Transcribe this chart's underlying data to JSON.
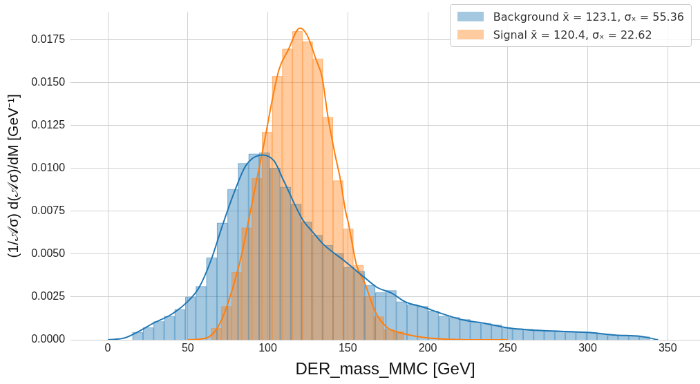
{
  "chart_data": {
    "type": "histogram",
    "xlabel": "DER_mass_MMC [GeV]",
    "ylabel": "(1/𝒜σ) d(𝒜σ)/dM [GeV⁻¹]",
    "xlim": [
      -23.3,
      370.2
    ],
    "xticks": [
      0,
      50,
      100,
      150,
      200,
      250,
      300,
      350
    ],
    "ylim": [
      0,
      0.0191
    ],
    "yticks": [
      {
        "value": 0,
        "label": "0.0000"
      },
      {
        "value": 0.0025,
        "label": "0.0025"
      },
      {
        "value": 0.005,
        "label": "0.0050"
      },
      {
        "value": 0.0075,
        "label": "0.0075"
      },
      {
        "value": 0.01,
        "label": "0.0100"
      },
      {
        "value": 0.0125,
        "label": "0.0125"
      },
      {
        "value": 0.015,
        "label": "0.0150"
      },
      {
        "value": 0.0175,
        "label": "0.0175"
      }
    ],
    "grid": true,
    "legend": "top right",
    "series": [
      {
        "name": "Background x̄ = 123.1, σₓ = 55.36",
        "color": "#a5c8e1",
        "bins": [
          15.4,
          22.0,
          28.6,
          35.2,
          41.8,
          48.4,
          55.0,
          61.6,
          68.2,
          74.8,
          81.4,
          88.0,
          94.6,
          101.2,
          107.8,
          114.4,
          121.0,
          127.6,
          134.2,
          140.8,
          147.4,
          154.0,
          160.6,
          167.2,
          173.8,
          180.4,
          187.0,
          193.6,
          200.2,
          206.8,
          213.4,
          220.0,
          226.6,
          233.2,
          239.8,
          246.4,
          253.0,
          259.6,
          266.2,
          272.8,
          279.4,
          286.0,
          292.6,
          299.2,
          305.8,
          312.4,
          319.0,
          325.6,
          332.2,
          338.8
        ],
        "values": [
          0.00044,
          0.0007,
          0.00106,
          0.00137,
          0.00176,
          0.00249,
          0.00311,
          0.00478,
          0.0068,
          0.00877,
          0.01028,
          0.01083,
          0.0109,
          0.01,
          0.00889,
          0.0079,
          0.00686,
          0.00609,
          0.0055,
          0.00503,
          0.00422,
          0.00399,
          0.00317,
          0.00275,
          0.00287,
          0.00221,
          0.00205,
          0.00194,
          0.00167,
          0.00138,
          0.0013,
          0.00118,
          0.00104,
          0.00095,
          0.00086,
          0.00066,
          0.00064,
          0.00061,
          0.00053,
          0.00051,
          0.00048,
          0.00043,
          0.00043,
          0.00042,
          0.00034,
          0.00026,
          0.00026,
          0.00023,
          0.00017
        ]
      },
      {
        "name": "Signal x̄ = 120.4, σₓ = 22.62",
        "color": "#ffcb9f",
        "bins": [
          64.6,
          70.95,
          77.3,
          83.65,
          90.0,
          96.35,
          102.7,
          109.05,
          115.4,
          121.75,
          128.1,
          134.45,
          140.8,
          147.15,
          153.5,
          159.85,
          166.2,
          172.55,
          178.9,
          185.25
        ],
        "values": [
          0.00067,
          0.00194,
          0.00393,
          0.00652,
          0.0094,
          0.0121,
          0.01536,
          0.01695,
          0.01798,
          0.01737,
          0.01637,
          0.01296,
          0.00927,
          0.00646,
          0.00434,
          0.00251,
          0.00134,
          0.00059,
          0.00047
        ]
      },
      {
        "type": "line",
        "color": "#1f77b4",
        "x": [
          0,
          10.2,
          17.6,
          28.5,
          39.5,
          49.8,
          57.1,
          64.4,
          71.7,
          79.1,
          86.4,
          96.6,
          103.9,
          109.8,
          121.5,
          128.1,
          134.7,
          147.9,
          159.6,
          168.4,
          177.2,
          186,
          197.7,
          206.5,
          221.1,
          235.7,
          250.3,
          272.3,
          300,
          317.7,
          332.3,
          344
        ],
        "values": [
          0,
          0.0001,
          0.0004,
          0.00097,
          0.00147,
          0.00222,
          0.00306,
          0.00461,
          0.00668,
          0.00862,
          0.01017,
          0.01077,
          0.01043,
          0.0093,
          0.00705,
          0.00628,
          0.00557,
          0.0046,
          0.0037,
          0.00305,
          0.00273,
          0.00221,
          0.00189,
          0.0016,
          0.00118,
          0.00096,
          0.00069,
          0.00053,
          0.00043,
          0.00027,
          0.00021,
          0
        ]
      },
      {
        "type": "line",
        "color": "#ff7f0e",
        "x": [
          50,
          61.5,
          68.8,
          74.7,
          83.4,
          89.3,
          96.6,
          106.9,
          112.7,
          120.0,
          124.4,
          130.3,
          133.9,
          137.6,
          142,
          145.3,
          148.6,
          150.4,
          155.5,
          160.6,
          167.2,
          174.5,
          183.3,
          192.1,
          200.9,
          224.3,
          250
        ],
        "values": [
          0,
          0.0001,
          0.00074,
          0.00203,
          0.00487,
          0.00758,
          0.01095,
          0.01572,
          0.01688,
          0.01817,
          0.01779,
          0.0163,
          0.01533,
          0.01301,
          0.01082,
          0.00938,
          0.0075,
          0.0068,
          0.00434,
          0.00331,
          0.00163,
          0.00072,
          0.0004,
          0.00021,
          0.0001,
          0,
          0
        ]
      }
    ]
  }
}
